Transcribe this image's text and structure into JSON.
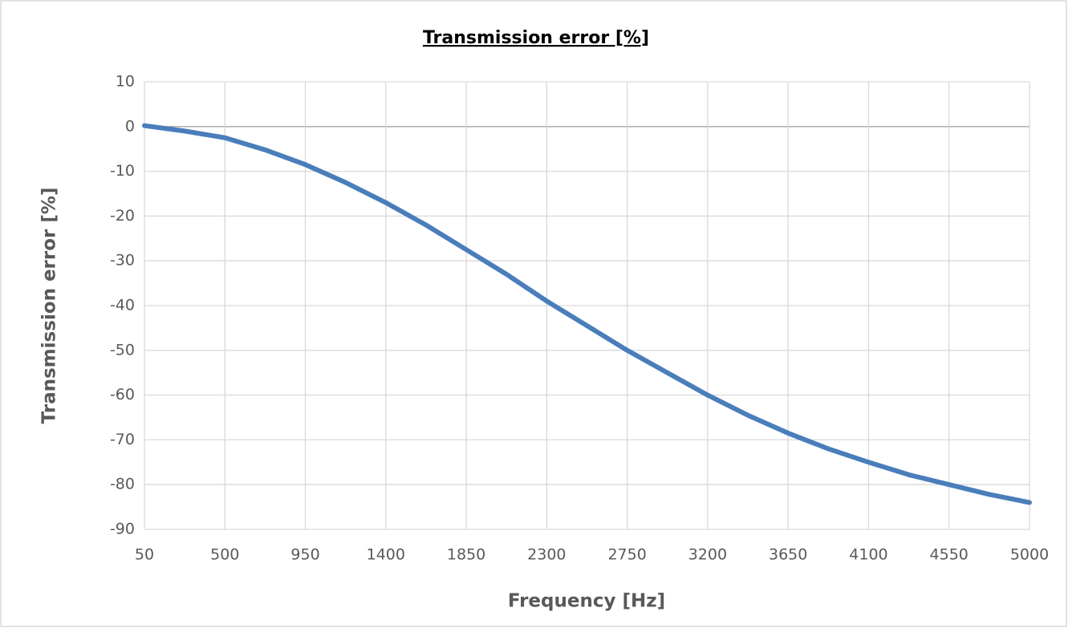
{
  "chart_data": {
    "type": "line",
    "title": "Transmission error [%]",
    "x_label": "Frequency [Hz]",
    "y_label": "Transmission error [%]",
    "x": [
      50,
      275,
      500,
      725,
      950,
      1175,
      1400,
      1625,
      1850,
      2075,
      2300,
      2525,
      2750,
      2975,
      3200,
      3425,
      3650,
      3875,
      4100,
      4325,
      4550,
      4775,
      5000
    ],
    "series": [
      {
        "name": "Transmission error [%]",
        "color": "#4a7ebb",
        "values": [
          0.2,
          -1,
          -2.5,
          -5.2,
          -8.5,
          -12.5,
          -17,
          -22,
          -27.5,
          -33,
          -39,
          -44.5,
          -50,
          -55,
          -60,
          -64.5,
          -68.5,
          -72,
          -75,
          -77.8,
          -80,
          -82.2,
          -84
        ]
      }
    ],
    "xlim": [
      50,
      5000
    ],
    "xticks": [
      50,
      500,
      950,
      1400,
      1850,
      2300,
      2750,
      3200,
      3650,
      4100,
      4550,
      5000
    ],
    "ylim": [
      -90,
      10
    ],
    "yticks": [
      -90,
      -80,
      -70,
      -60,
      -50,
      -40,
      -30,
      -20,
      -10,
      0,
      10
    ],
    "grid": true
  }
}
